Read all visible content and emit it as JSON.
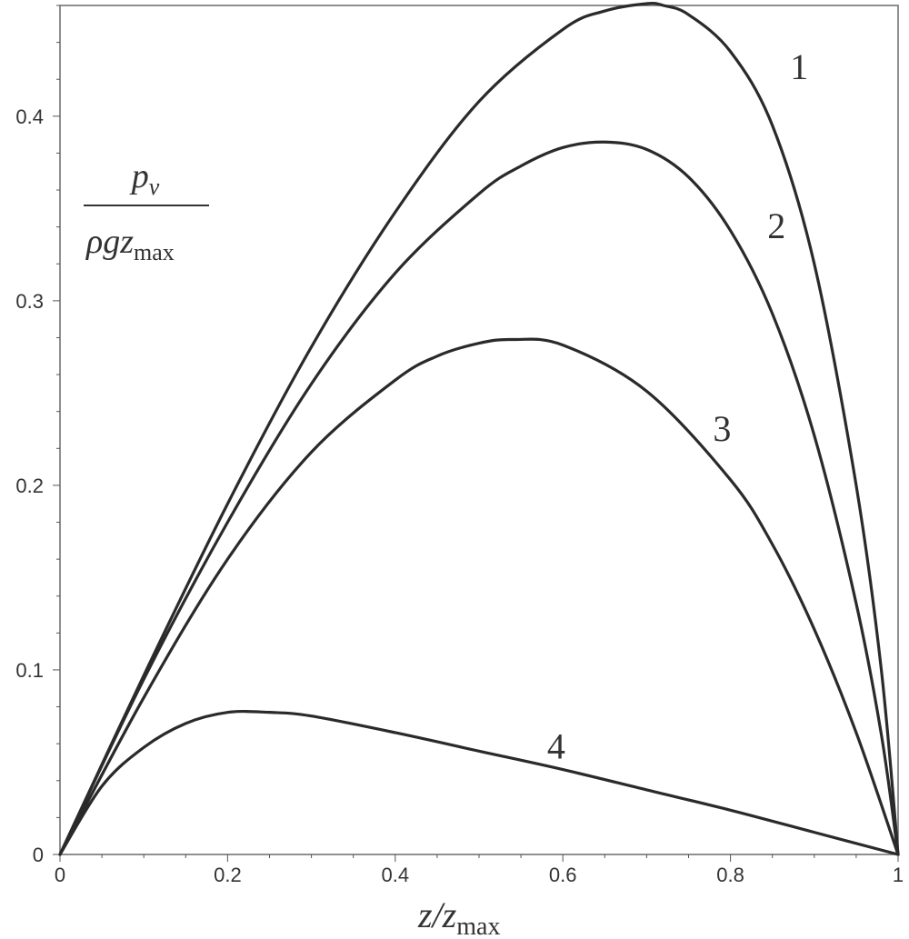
{
  "chart_data": {
    "type": "line",
    "xlabel": "z/z_max",
    "ylabel": "p_v / (ρ g z_max)",
    "xlim": [
      0,
      1
    ],
    "ylim": [
      0,
      0.46
    ],
    "x_ticks": [
      0,
      0.2,
      0.4,
      0.6,
      0.8,
      1
    ],
    "x_tick_labels": [
      "0",
      "0.2",
      "0.4",
      "0.6",
      "0.8",
      "1"
    ],
    "y_ticks": [
      0,
      0.1,
      0.2,
      0.3,
      0.4
    ],
    "y_tick_labels": [
      "0",
      "0.1",
      "0.2",
      "0.3",
      "0.4"
    ],
    "grid": false,
    "legend": "none",
    "line_color": "#2a2a2a",
    "series": [
      {
        "name": "1",
        "x": [
          0,
          0.1,
          0.2,
          0.3,
          0.4,
          0.5,
          0.6,
          0.65,
          0.7,
          0.72,
          0.75,
          0.8,
          0.85,
          0.9,
          0.95,
          0.98,
          1.0
        ],
        "y": [
          0,
          0.097,
          0.19,
          0.275,
          0.348,
          0.408,
          0.447,
          0.457,
          0.461,
          0.46,
          0.455,
          0.435,
          0.395,
          0.32,
          0.2,
          0.1,
          0
        ]
      },
      {
        "name": "2",
        "x": [
          0,
          0.1,
          0.2,
          0.3,
          0.4,
          0.5,
          0.55,
          0.6,
          0.65,
          0.7,
          0.75,
          0.8,
          0.85,
          0.9,
          0.95,
          0.98,
          1.0
        ],
        "y": [
          0,
          0.095,
          0.18,
          0.255,
          0.315,
          0.358,
          0.373,
          0.383,
          0.386,
          0.382,
          0.367,
          0.338,
          0.293,
          0.227,
          0.136,
          0.065,
          0
        ]
      },
      {
        "name": "3",
        "x": [
          0,
          0.1,
          0.2,
          0.3,
          0.4,
          0.45,
          0.5,
          0.54,
          0.6,
          0.7,
          0.8,
          0.85,
          0.9,
          0.95,
          1.0
        ],
        "y": [
          0,
          0.085,
          0.16,
          0.218,
          0.257,
          0.27,
          0.277,
          0.279,
          0.276,
          0.251,
          0.203,
          0.168,
          0.122,
          0.066,
          0
        ]
      },
      {
        "name": "4",
        "x": [
          0,
          0.05,
          0.1,
          0.15,
          0.2,
          0.25,
          0.3,
          0.4,
          0.5,
          0.6,
          0.7,
          0.8,
          0.9,
          1.0
        ],
        "y": [
          0,
          0.037,
          0.058,
          0.071,
          0.077,
          0.077,
          0.075,
          0.066,
          0.056,
          0.046,
          0.035,
          0.024,
          0.012,
          0
        ]
      }
    ],
    "curve_labels": [
      {
        "text": "1",
        "x": 0.882,
        "y": 0.42
      },
      {
        "text": "2",
        "x": 0.855,
        "y": 0.334
      },
      {
        "text": "3",
        "x": 0.79,
        "y": 0.224
      },
      {
        "text": "4",
        "x": 0.592,
        "y": 0.052
      }
    ]
  }
}
